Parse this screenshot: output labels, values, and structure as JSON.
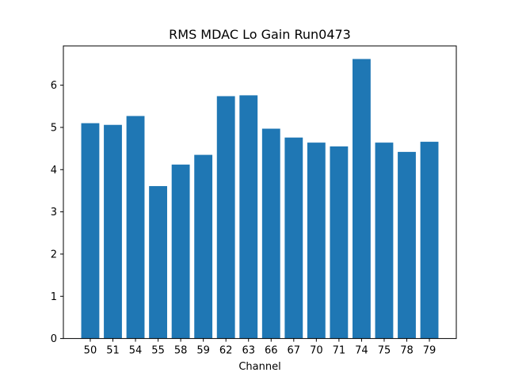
{
  "chart_data": {
    "type": "bar",
    "title": "RMS MDAC Lo Gain Run0473",
    "xlabel": "Channel",
    "ylabel": "",
    "categories": [
      "50",
      "51",
      "54",
      "55",
      "58",
      "59",
      "62",
      "63",
      "66",
      "67",
      "70",
      "71",
      "74",
      "75",
      "78",
      "79"
    ],
    "values": [
      5.1,
      5.06,
      5.27,
      3.61,
      4.12,
      4.35,
      5.74,
      5.76,
      4.97,
      4.76,
      4.64,
      4.55,
      6.62,
      4.64,
      4.42,
      4.66
    ],
    "ylim": [
      0,
      6.93
    ],
    "yticks": [
      "0",
      "1",
      "2",
      "3",
      "4",
      "5",
      "6"
    ],
    "grid": false,
    "legend": "none",
    "colors": {
      "bar": "#1f77b4",
      "axis": "#000000",
      "background": "#ffffff"
    }
  }
}
